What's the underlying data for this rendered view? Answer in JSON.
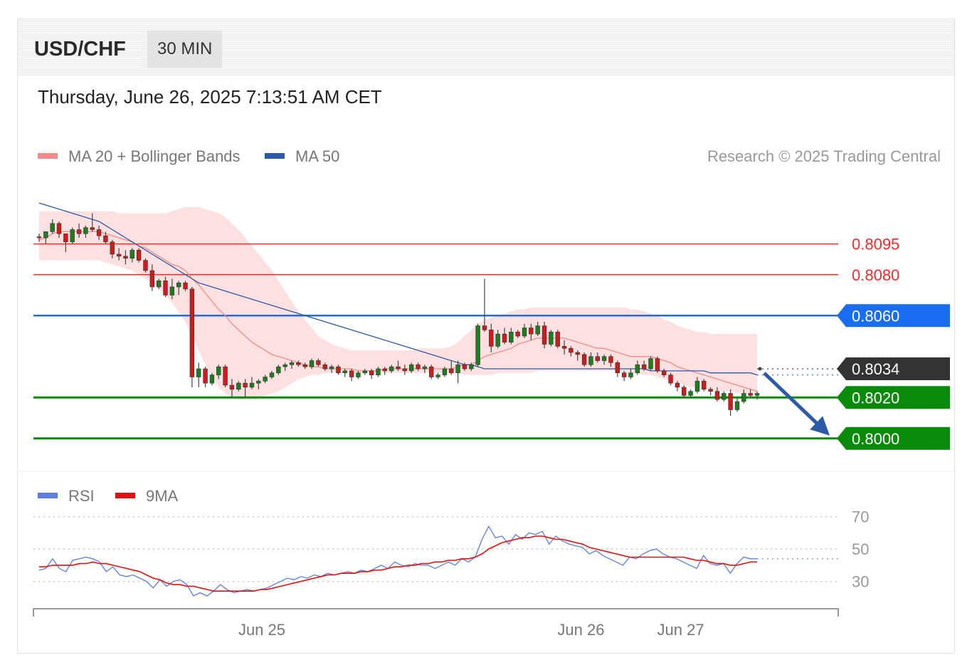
{
  "header": {
    "symbol": "USD/CHF",
    "timeframe": "30 MIN"
  },
  "timestamp": "Thursday, June 26, 2025 7:13:51 AM CET",
  "legend": {
    "ma20_bb": {
      "label": "MA 20 + Bollinger Bands",
      "color": "#f28b8b"
    },
    "ma50": {
      "label": "MA 50",
      "color": "#2b5aa8"
    },
    "rsi": {
      "label": "RSI",
      "color": "#5b7fe0"
    },
    "rsi_ma": {
      "label": "9MA",
      "color": "#e01010"
    }
  },
  "copyright": "Research © 2025 Trading Central",
  "chart_data": {
    "type": "candlestick",
    "price_axis": {
      "min": 0.7986,
      "max": 0.813
    },
    "levels": [
      {
        "value": 0.8095,
        "label": "0.8095",
        "kind": "resistance",
        "color": "#ff2a2a"
      },
      {
        "value": 0.808,
        "label": "0.8080",
        "kind": "resistance",
        "color": "#ff2a2a"
      },
      {
        "value": 0.806,
        "label": "0.8060",
        "kind": "pivot",
        "color": "#1a6df0"
      },
      {
        "value": 0.8034,
        "label": "0.8034",
        "kind": "last_price",
        "color": "#333333"
      },
      {
        "value": 0.802,
        "label": "0.8020",
        "kind": "support",
        "color": "#0a8a0a"
      },
      {
        "value": 0.8,
        "label": "0.8000",
        "kind": "support",
        "color": "#0a8a0a"
      }
    ],
    "candles": [
      [
        0.80985,
        0.81,
        0.8096,
        0.8098
      ],
      [
        0.8098,
        0.8101,
        0.8095,
        0.8101
      ],
      [
        0.8101,
        0.8107,
        0.81,
        0.8105
      ],
      [
        0.8105,
        0.8106,
        0.8098,
        0.81
      ],
      [
        0.81,
        0.81,
        0.8091,
        0.8096
      ],
      [
        0.8096,
        0.8103,
        0.8095,
        0.8102
      ],
      [
        0.8102,
        0.8105,
        0.8098,
        0.81
      ],
      [
        0.81,
        0.8104,
        0.8098,
        0.8103
      ],
      [
        0.8103,
        0.811,
        0.8101,
        0.8102
      ],
      [
        0.8102,
        0.8104,
        0.8097,
        0.8099
      ],
      [
        0.8099,
        0.8101,
        0.8095,
        0.8096
      ],
      [
        0.8096,
        0.8097,
        0.8088,
        0.809
      ],
      [
        0.809,
        0.8093,
        0.8087,
        0.8089
      ],
      [
        0.8089,
        0.8092,
        0.8085,
        0.8088
      ],
      [
        0.8088,
        0.8093,
        0.8086,
        0.8092
      ],
      [
        0.8092,
        0.8093,
        0.8086,
        0.8087
      ],
      [
        0.8087,
        0.8088,
        0.8081,
        0.8082
      ],
      [
        0.8082,
        0.8085,
        0.8072,
        0.8074
      ],
      [
        0.8074,
        0.8078,
        0.8073,
        0.8077
      ],
      [
        0.8077,
        0.8079,
        0.8069,
        0.807
      ],
      [
        0.807,
        0.8078,
        0.8068,
        0.8074
      ],
      [
        0.8074,
        0.8077,
        0.807,
        0.8076
      ],
      [
        0.8076,
        0.8077,
        0.8072,
        0.8073
      ],
      [
        0.8073,
        0.8074,
        0.8025,
        0.803
      ],
      [
        0.803,
        0.8037,
        0.8025,
        0.8034
      ],
      [
        0.8034,
        0.8035,
        0.8025,
        0.8027
      ],
      [
        0.8027,
        0.8032,
        0.8026,
        0.8031
      ],
      [
        0.8031,
        0.8036,
        0.8029,
        0.8035
      ],
      [
        0.8035,
        0.8036,
        0.8025,
        0.8026
      ],
      [
        0.8026,
        0.8029,
        0.802,
        0.8024
      ],
      [
        0.8024,
        0.8028,
        0.8023,
        0.8027
      ],
      [
        0.8027,
        0.8029,
        0.802,
        0.8025
      ],
      [
        0.8025,
        0.803,
        0.8024,
        0.8027
      ],
      [
        0.8027,
        0.8029,
        0.8024,
        0.8028
      ],
      [
        0.8028,
        0.8031,
        0.8027,
        0.803
      ],
      [
        0.803,
        0.8033,
        0.8029,
        0.8032
      ],
      [
        0.8032,
        0.8036,
        0.8031,
        0.8035
      ],
      [
        0.8035,
        0.8037,
        0.8033,
        0.8036
      ],
      [
        0.8036,
        0.8038,
        0.8034,
        0.8037
      ],
      [
        0.8037,
        0.8038,
        0.8035,
        0.8036
      ],
      [
        0.8036,
        0.8037,
        0.8034,
        0.8035
      ],
      [
        0.8035,
        0.8039,
        0.8034,
        0.8038
      ],
      [
        0.8038,
        0.8039,
        0.8035,
        0.8036
      ],
      [
        0.8036,
        0.8037,
        0.8033,
        0.8034
      ],
      [
        0.8034,
        0.8036,
        0.8032,
        0.8035
      ],
      [
        0.8035,
        0.8036,
        0.8031,
        0.8032
      ],
      [
        0.8032,
        0.8034,
        0.803,
        0.8033
      ],
      [
        0.8033,
        0.8034,
        0.8028,
        0.803
      ],
      [
        0.803,
        0.8033,
        0.8029,
        0.8032
      ],
      [
        0.8032,
        0.8034,
        0.8031,
        0.8033
      ],
      [
        0.8033,
        0.8034,
        0.8029,
        0.8031
      ],
      [
        0.8031,
        0.8035,
        0.803,
        0.8034
      ],
      [
        0.8034,
        0.8035,
        0.8031,
        0.8033
      ],
      [
        0.8033,
        0.8036,
        0.8032,
        0.8035
      ],
      [
        0.8035,
        0.8038,
        0.8033,
        0.8034
      ],
      [
        0.8034,
        0.8036,
        0.8031,
        0.8033
      ],
      [
        0.8033,
        0.8037,
        0.8032,
        0.8036
      ],
      [
        0.8036,
        0.8037,
        0.8033,
        0.8034
      ],
      [
        0.8034,
        0.8036,
        0.8032,
        0.8035
      ],
      [
        0.8035,
        0.8036,
        0.8029,
        0.803
      ],
      [
        0.803,
        0.8032,
        0.8029,
        0.8031
      ],
      [
        0.8031,
        0.8035,
        0.803,
        0.8034
      ],
      [
        0.8034,
        0.8038,
        0.8031,
        0.8032
      ],
      [
        0.8032,
        0.8038,
        0.8027,
        0.8036
      ],
      [
        0.8036,
        0.8037,
        0.8033,
        0.8034
      ],
      [
        0.8034,
        0.8037,
        0.8033,
        0.8036
      ],
      [
        0.8036,
        0.8056,
        0.8035,
        0.8055
      ],
      [
        0.8055,
        0.8078,
        0.8052,
        0.8053
      ],
      [
        0.8053,
        0.8056,
        0.8042,
        0.8045
      ],
      [
        0.8045,
        0.8053,
        0.8044,
        0.8051
      ],
      [
        0.8051,
        0.8054,
        0.8046,
        0.8047
      ],
      [
        0.8047,
        0.8054,
        0.8046,
        0.8052
      ],
      [
        0.8052,
        0.8053,
        0.8049,
        0.805
      ],
      [
        0.805,
        0.8056,
        0.8049,
        0.8054
      ],
      [
        0.8054,
        0.8056,
        0.8048,
        0.8051
      ],
      [
        0.8051,
        0.8057,
        0.805,
        0.8055
      ],
      [
        0.8055,
        0.8057,
        0.8044,
        0.8046
      ],
      [
        0.8046,
        0.8053,
        0.8045,
        0.8052
      ],
      [
        0.8052,
        0.8053,
        0.8044,
        0.8045
      ],
      [
        0.8045,
        0.8048,
        0.8041,
        0.8044
      ],
      [
        0.8044,
        0.8045,
        0.804,
        0.8042
      ],
      [
        0.8042,
        0.8043,
        0.8038,
        0.8041
      ],
      [
        0.8041,
        0.8042,
        0.8035,
        0.8036
      ],
      [
        0.8036,
        0.8042,
        0.8035,
        0.804
      ],
      [
        0.804,
        0.8042,
        0.8037,
        0.8038
      ],
      [
        0.8038,
        0.8041,
        0.8036,
        0.804
      ],
      [
        0.804,
        0.8041,
        0.8035,
        0.8037
      ],
      [
        0.8037,
        0.8038,
        0.803,
        0.8032
      ],
      [
        0.8032,
        0.8033,
        0.8028,
        0.803
      ],
      [
        0.803,
        0.8034,
        0.8029,
        0.8032
      ],
      [
        0.8032,
        0.8038,
        0.8031,
        0.8036
      ],
      [
        0.8036,
        0.8038,
        0.8033,
        0.8034
      ],
      [
        0.8034,
        0.804,
        0.8033,
        0.8039
      ],
      [
        0.8039,
        0.804,
        0.8032,
        0.8033
      ],
      [
        0.8033,
        0.8034,
        0.803,
        0.8031
      ],
      [
        0.8031,
        0.8032,
        0.8026,
        0.8027
      ],
      [
        0.8027,
        0.8028,
        0.8023,
        0.8025
      ],
      [
        0.8025,
        0.8026,
        0.802,
        0.8021
      ],
      [
        0.8021,
        0.8024,
        0.802,
        0.8023
      ],
      [
        0.8023,
        0.803,
        0.8022,
        0.8028
      ],
      [
        0.8028,
        0.8029,
        0.8023,
        0.8024
      ],
      [
        0.8024,
        0.8025,
        0.8021,
        0.8023
      ],
      [
        0.8023,
        0.8025,
        0.8018,
        0.8019
      ],
      [
        0.8019,
        0.8023,
        0.8018,
        0.8022
      ],
      [
        0.8022,
        0.8024,
        0.8011,
        0.8014
      ],
      [
        0.8014,
        0.802,
        0.8013,
        0.8018
      ],
      [
        0.8018,
        0.8024,
        0.8017,
        0.8022
      ],
      [
        0.8022,
        0.8024,
        0.802,
        0.8021
      ],
      [
        0.8021,
        0.8023,
        0.8019,
        0.8022
      ]
    ],
    "ma20": [
      0.8097,
      0.8098,
      0.81,
      0.8101,
      0.8101,
      0.8101,
      0.8101,
      0.8101,
      0.8101,
      0.8101,
      0.81,
      0.8099,
      0.8098,
      0.8097,
      0.8096,
      0.8094,
      0.8093,
      0.8091,
      0.8089,
      0.8087,
      0.8085,
      0.8084,
      0.8082,
      0.8078,
      0.8075,
      0.8071,
      0.8067,
      0.8063,
      0.806,
      0.8056,
      0.8053,
      0.805,
      0.8047,
      0.8045,
      0.8043,
      0.8041,
      0.804,
      0.8039,
      0.8038,
      0.8037,
      0.8036,
      0.8035,
      0.8035,
      0.8034,
      0.8034,
      0.8034,
      0.8034,
      0.8034,
      0.8033,
      0.8033,
      0.8033,
      0.8033,
      0.8034,
      0.8034,
      0.8034,
      0.8034,
      0.8034,
      0.8034,
      0.8034,
      0.8034,
      0.8034,
      0.8034,
      0.8034,
      0.8035,
      0.8036,
      0.8036,
      0.8038,
      0.804,
      0.8041,
      0.8042,
      0.8043,
      0.8044,
      0.8046,
      0.8047,
      0.8048,
      0.8049,
      0.8049,
      0.8049,
      0.8049,
      0.8049,
      0.8048,
      0.8047,
      0.8046,
      0.8045,
      0.8044,
      0.8044,
      0.8043,
      0.8042,
      0.8041,
      0.804,
      0.804,
      0.804,
      0.804,
      0.8039,
      0.8038,
      0.8037,
      0.8035,
      0.8034,
      0.8033,
      0.8032,
      0.8031,
      0.803,
      0.8029,
      0.8028,
      0.8027,
      0.8026,
      0.8025,
      0.8024,
      0.8023
    ],
    "ma50": [
      0.8115,
      0.8114,
      0.8113,
      0.8112,
      0.8111,
      0.811,
      0.8109,
      0.8108,
      0.8107,
      0.8106,
      0.8104,
      0.8102,
      0.81,
      0.8098,
      0.8096,
      0.8094,
      0.8092,
      0.809,
      0.8088,
      0.8086,
      0.8084,
      0.8082,
      0.808,
      0.8078,
      0.8076,
      0.8075,
      0.8074,
      0.8073,
      0.8072,
      0.8071,
      0.807,
      0.8069,
      0.8068,
      0.8067,
      0.8066,
      0.8065,
      0.8064,
      0.8063,
      0.8062,
      0.8061,
      0.806,
      0.8059,
      0.8058,
      0.8057,
      0.8056,
      0.8055,
      0.8054,
      0.8053,
      0.8052,
      0.8051,
      0.805,
      0.8049,
      0.8048,
      0.8047,
      0.8046,
      0.8045,
      0.8044,
      0.8043,
      0.8042,
      0.8041,
      0.804,
      0.8039,
      0.8038,
      0.8037,
      0.8036,
      0.8036,
      0.8035,
      0.8034,
      0.8034,
      0.8034,
      0.8034,
      0.8034,
      0.8034,
      0.8034,
      0.8034,
      0.8034,
      0.8034,
      0.8034,
      0.8034,
      0.8034,
      0.8034,
      0.8034,
      0.8034,
      0.8034,
      0.8034,
      0.8034,
      0.8034,
      0.8034,
      0.8034,
      0.8034,
      0.8034,
      0.8034,
      0.8033,
      0.8033,
      0.8033,
      0.8033,
      0.8033,
      0.8033,
      0.8033,
      0.8033,
      0.8033,
      0.8032,
      0.8032,
      0.8032,
      0.8032,
      0.8032,
      0.8032,
      0.8032,
      0.8031
    ],
    "bb_upper": [
      0.8111,
      0.8111,
      0.8111,
      0.8111,
      0.8111,
      0.8111,
      0.8111,
      0.8111,
      0.8111,
      0.8111,
      0.8111,
      0.8111,
      0.811,
      0.811,
      0.811,
      0.811,
      0.811,
      0.811,
      0.811,
      0.811,
      0.8111,
      0.8112,
      0.8113,
      0.8113,
      0.8113,
      0.8112,
      0.8111,
      0.811,
      0.8108,
      0.8105,
      0.8102,
      0.8098,
      0.8094,
      0.809,
      0.8086,
      0.8082,
      0.8077,
      0.8072,
      0.8067,
      0.8062,
      0.8058,
      0.8054,
      0.805,
      0.8048,
      0.8046,
      0.8045,
      0.8044,
      0.8043,
      0.8043,
      0.8043,
      0.8043,
      0.8043,
      0.8043,
      0.8043,
      0.8043,
      0.8043,
      0.8043,
      0.8044,
      0.8044,
      0.8044,
      0.8044,
      0.8044,
      0.8045,
      0.8047,
      0.805,
      0.8053,
      0.8056,
      0.8058,
      0.8059,
      0.806,
      0.8061,
      0.8062,
      0.8063,
      0.8063,
      0.8064,
      0.8064,
      0.8064,
      0.8064,
      0.8064,
      0.8064,
      0.8064,
      0.8064,
      0.8064,
      0.8064,
      0.8064,
      0.8064,
      0.8064,
      0.8064,
      0.8064,
      0.8063,
      0.8063,
      0.8062,
      0.8061,
      0.806,
      0.8058,
      0.8057,
      0.8055,
      0.8054,
      0.8053,
      0.8052,
      0.8052,
      0.8051,
      0.8051,
      0.8051,
      0.8051,
      0.8051,
      0.8051,
      0.8051,
      0.8051
    ],
    "bb_lower": [
      0.8087,
      0.8087,
      0.8087,
      0.8087,
      0.8087,
      0.8087,
      0.8087,
      0.8087,
      0.8087,
      0.8087,
      0.8086,
      0.8085,
      0.8084,
      0.8083,
      0.8082,
      0.808,
      0.8078,
      0.8076,
      0.8073,
      0.807,
      0.8066,
      0.8062,
      0.8057,
      0.805,
      0.8043,
      0.8036,
      0.803,
      0.8025,
      0.8022,
      0.802,
      0.8019,
      0.8019,
      0.8019,
      0.802,
      0.8021,
      0.8022,
      0.8023,
      0.8025,
      0.8027,
      0.8029,
      0.803,
      0.8031,
      0.8031,
      0.8032,
      0.8032,
      0.8032,
      0.8032,
      0.8032,
      0.8032,
      0.8032,
      0.8032,
      0.8032,
      0.8032,
      0.8032,
      0.8032,
      0.8032,
      0.8032,
      0.8032,
      0.8032,
      0.8032,
      0.8032,
      0.8032,
      0.8032,
      0.8032,
      0.8031,
      0.8031,
      0.8031,
      0.8031,
      0.8031,
      0.8032,
      0.8032,
      0.8032,
      0.8032,
      0.8032,
      0.8032,
      0.8033,
      0.8033,
      0.8033,
      0.8033,
      0.8033,
      0.8033,
      0.8033,
      0.8033,
      0.8033,
      0.8033,
      0.8033,
      0.8033,
      0.8033,
      0.8032,
      0.8032,
      0.8032,
      0.8031,
      0.8031,
      0.803,
      0.8029,
      0.8028,
      0.8027,
      0.8026,
      0.8025,
      0.8025,
      0.8024,
      0.8024,
      0.8023,
      0.8023,
      0.8023,
      0.8022,
      0.8022,
      0.8022,
      0.8022
    ],
    "projection": {
      "from": 0.8034,
      "to": 0.8
    },
    "x_ticks": [
      {
        "label": "Jun 25",
        "index": 33.5
      },
      {
        "label": "Jun 26",
        "index": 81.5
      },
      {
        "label": "Jun 27",
        "index": 96.5
      }
    ],
    "rsi": {
      "ylim": [
        10,
        80
      ],
      "levels": [
        {
          "value": 70,
          "label": "70"
        },
        {
          "value": 50,
          "label": "50"
        },
        {
          "value": 30,
          "label": "30"
        }
      ],
      "rsi_last": 44,
      "rsi_values": [
        37,
        38,
        44,
        38,
        36,
        43,
        44,
        45,
        44,
        42,
        36,
        39,
        34,
        33,
        34,
        32,
        30,
        26,
        31,
        27,
        30,
        31,
        28,
        21,
        23,
        21,
        24,
        28,
        25,
        23,
        24,
        25,
        24,
        25,
        26,
        28,
        30,
        32,
        31,
        33,
        32,
        34,
        33,
        35,
        34,
        35,
        36,
        35,
        37,
        36,
        38,
        40,
        38,
        42,
        40,
        39,
        41,
        40,
        40,
        38,
        40,
        42,
        40,
        44,
        42,
        45,
        56,
        64,
        57,
        58,
        53,
        59,
        56,
        60,
        59,
        61,
        53,
        58,
        55,
        53,
        52,
        51,
        47,
        49,
        46,
        44,
        42,
        40,
        45,
        44,
        47,
        49,
        50,
        47,
        45,
        44,
        42,
        40,
        38,
        46,
        41,
        40,
        41,
        35,
        41,
        45,
        44,
        44
      ],
      "ma_values": [
        39,
        39,
        40,
        40,
        40,
        40,
        41,
        41,
        42,
        41,
        41,
        40,
        39,
        38,
        37,
        36,
        34,
        32,
        31,
        29,
        28,
        28,
        27,
        27,
        26,
        25,
        24,
        24,
        24,
        24,
        24,
        24,
        24,
        25,
        25,
        26,
        27,
        28,
        29,
        30,
        31,
        32,
        33,
        34,
        34,
        35,
        35,
        35,
        36,
        36,
        37,
        37,
        38,
        39,
        39,
        40,
        40,
        41,
        41,
        42,
        42,
        43,
        43,
        44,
        44,
        45,
        47,
        50,
        52,
        54,
        55,
        56,
        57,
        57,
        58,
        58,
        57,
        56,
        56,
        55,
        54,
        53,
        51,
        50,
        49,
        48,
        47,
        46,
        45,
        45,
        45,
        45,
        45,
        45,
        45,
        45,
        45,
        44,
        43,
        43,
        42,
        41,
        41,
        40,
        40,
        41,
        42,
        42
      ]
    }
  }
}
